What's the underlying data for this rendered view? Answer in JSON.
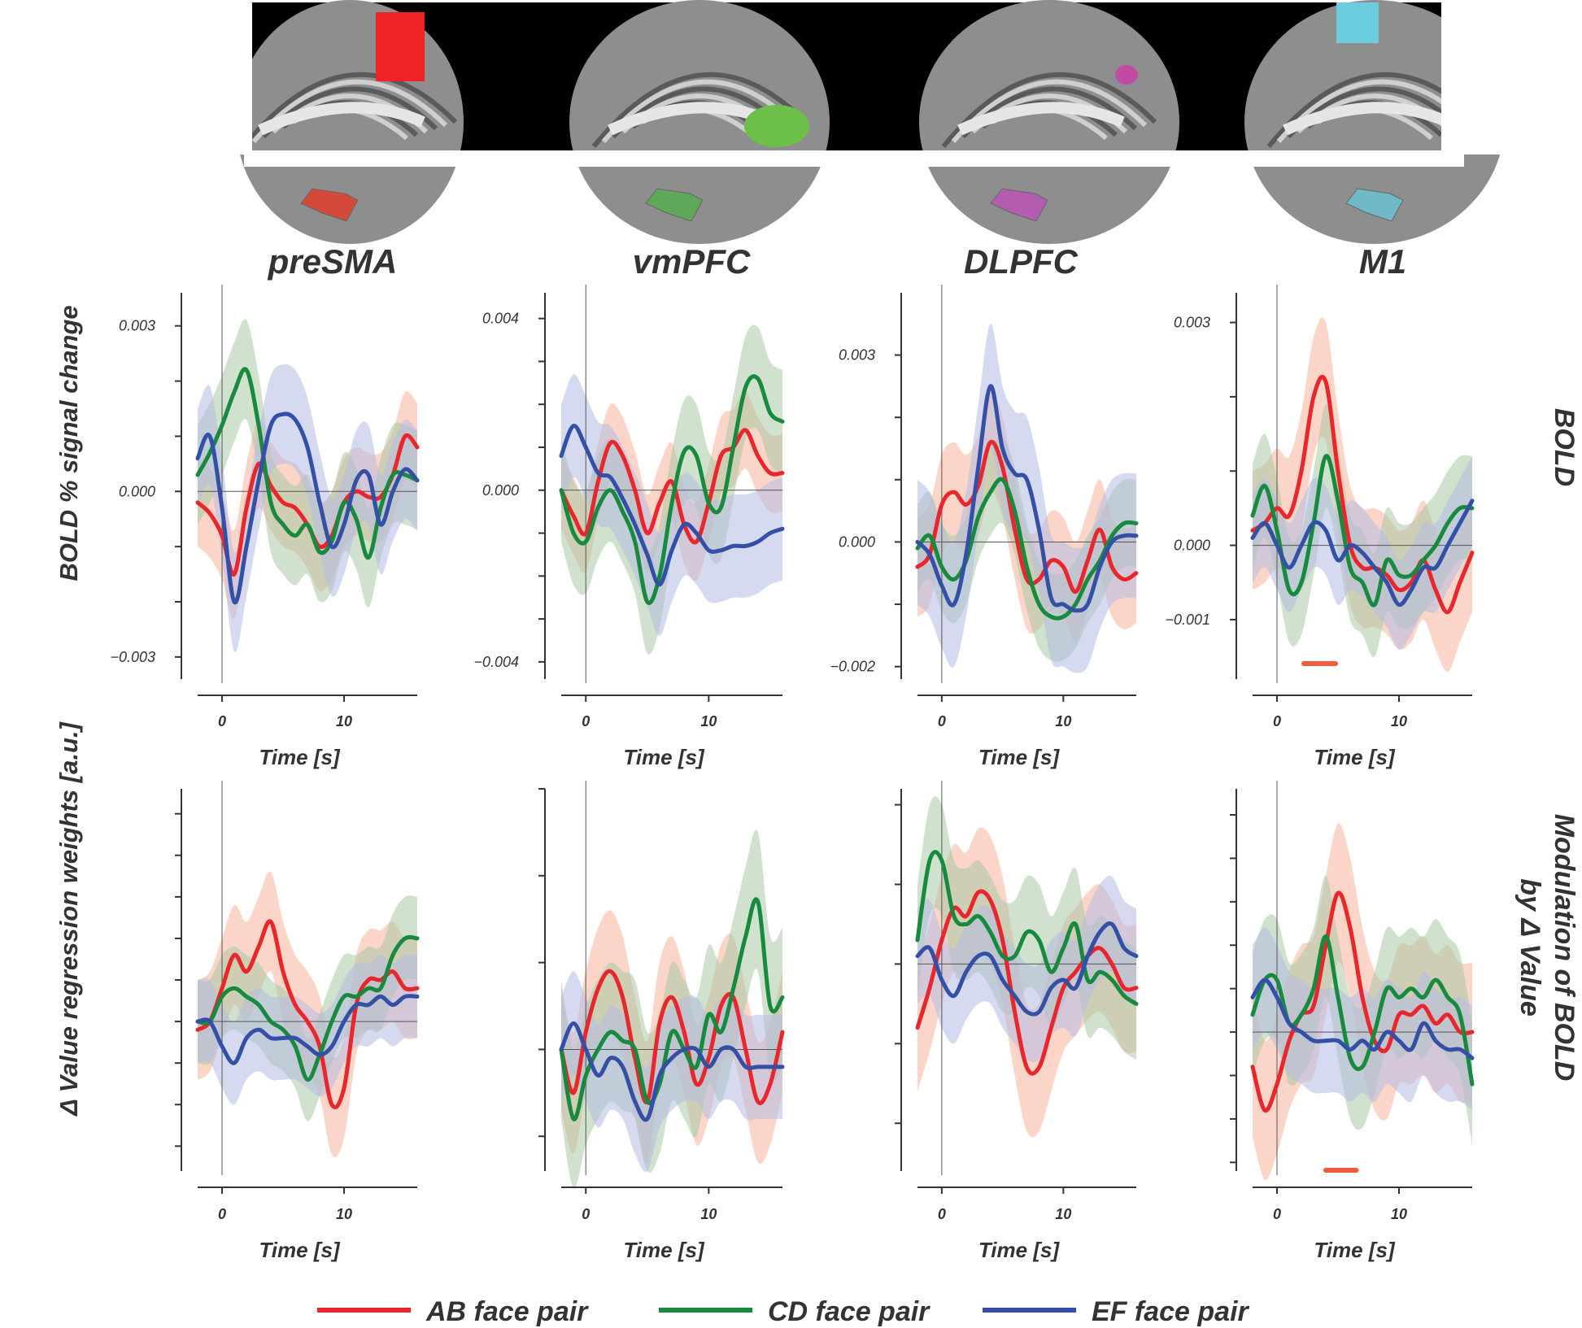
{
  "colors": {
    "AB": "#e8262b",
    "CD": "#178a3d",
    "EF": "#3350a6",
    "AB_band": "#f7b39b",
    "CD_band": "#a9c9a4",
    "EF_band": "#b5bce3",
    "roi_preSMA": "#ee2326",
    "roi_vmPFC": "#6cc04a",
    "roi_DLPFC": "#c04ba3",
    "roi_M1": "#6ccde0",
    "significance_bar": "#ee5a3a"
  },
  "labels": {
    "ylabel_row1": "BOLD % signal change",
    "ylabel_row2": "Δ Value regression weights [a.u.]",
    "row1_title": "BOLD",
    "row2_title_line1": "Modulation of BOLD",
    "row2_title_line2": "by Δ Value",
    "xlabel": "Time [s]"
  },
  "legend": [
    {
      "key": "AB",
      "label": "AB face pair"
    },
    {
      "key": "CD",
      "label": "CD face pair"
    },
    {
      "key": "EF",
      "label": "EF face pair"
    }
  ],
  "chart_data": [
    {
      "type": "line",
      "region": "preSMA",
      "row": "BOLD",
      "title": "preSMA",
      "xlabel": "Time [s]",
      "ylabel": "BOLD % signal change",
      "xlim": [
        -2,
        16
      ],
      "x_ticks": [
        0,
        10
      ],
      "ylim": [
        -0.0034,
        0.0036
      ],
      "y_ticks": [
        -0.003,
        -0.002,
        -0.001,
        0,
        0.001,
        0.002,
        0.003
      ],
      "y_tick_labels": [
        "−0.003",
        "",
        "",
        "0.000",
        "",
        "",
        "0.003"
      ],
      "x": [
        -2,
        -1,
        0,
        1,
        2,
        3,
        4,
        5,
        6,
        7,
        8,
        9,
        10,
        11,
        12,
        13,
        14,
        15,
        16
      ],
      "series": [
        {
          "name": "AB face pair",
          "values": [
            -0.0002,
            -0.0004,
            -0.0008,
            -0.0015,
            -0.0003,
            0.0005,
            0.0001,
            -0.0002,
            -0.0003,
            -0.0006,
            -0.001,
            -0.0008,
            -0.0002,
            0.0,
            -0.0001,
            -0.0001,
            0.0003,
            0.001,
            0.0008
          ],
          "band": 0.0008
        },
        {
          "name": "CD face pair",
          "values": [
            0.0003,
            0.0007,
            0.0012,
            0.0018,
            0.0022,
            0.0012,
            -0.0002,
            -0.0006,
            -0.0008,
            -0.0006,
            -0.0011,
            -0.0009,
            -0.0002,
            -0.0005,
            -0.0012,
            -0.0003,
            0.0003,
            0.0003,
            0.0002
          ],
          "band": 0.0009
        },
        {
          "name": "EF face pair",
          "values": [
            0.0006,
            0.001,
            -0.0003,
            -0.002,
            -0.001,
            0.0002,
            0.0012,
            0.0014,
            0.0013,
            0.0008,
            -0.0002,
            -0.001,
            -0.0006,
            0.0002,
            0.0003,
            -0.0006,
            0.0,
            0.0004,
            0.0002
          ],
          "band": 0.0009
        }
      ]
    },
    {
      "type": "line",
      "region": "vmPFC",
      "row": "BOLD",
      "title": "vmPFC",
      "xlabel": "Time [s]",
      "ylabel": "",
      "xlim": [
        -2,
        16
      ],
      "x_ticks": [
        0,
        10
      ],
      "ylim": [
        -0.0044,
        0.0046
      ],
      "y_ticks": [
        -0.004,
        -0.003,
        -0.002,
        -0.001,
        0,
        0.001,
        0.002,
        0.003,
        0.004
      ],
      "y_tick_labels": [
        "−0.004",
        "",
        "",
        "",
        "0.000",
        "",
        "",
        "",
        "0.004"
      ],
      "x": [
        -2,
        -1,
        0,
        1,
        2,
        3,
        4,
        5,
        6,
        7,
        8,
        9,
        10,
        11,
        12,
        13,
        14,
        15,
        16
      ],
      "series": [
        {
          "name": "AB face pair",
          "values": [
            0.0,
            -0.0006,
            -0.001,
            0.0002,
            0.0011,
            0.0008,
            0.0,
            -0.001,
            -0.0003,
            0.0002,
            -0.0008,
            -0.0012,
            -0.0003,
            0.0008,
            0.001,
            0.0014,
            0.0008,
            0.0004,
            0.0004
          ],
          "band": 0.0009
        },
        {
          "name": "CD face pair",
          "values": [
            0.0,
            -0.001,
            -0.0012,
            -0.0004,
            0.0,
            -0.0005,
            -0.0012,
            -0.0026,
            -0.002,
            -0.0003,
            0.0009,
            0.0008,
            -0.0003,
            -0.0004,
            0.001,
            0.0024,
            0.0026,
            0.0018,
            0.0016
          ],
          "band": 0.0012
        },
        {
          "name": "EF face pair",
          "values": [
            0.0008,
            0.0015,
            0.001,
            0.0004,
            0.0003,
            -0.0002,
            -0.0008,
            -0.0015,
            -0.0022,
            -0.0014,
            -0.0008,
            -0.001,
            -0.0014,
            -0.0014,
            -0.0013,
            -0.0013,
            -0.0012,
            -0.001,
            -0.0009
          ],
          "band": 0.0012
        }
      ]
    },
    {
      "type": "line",
      "region": "DLPFC",
      "row": "BOLD",
      "title": "DLPFC",
      "xlabel": "Time [s]",
      "ylabel": "",
      "xlim": [
        -2,
        16
      ],
      "x_ticks": [
        0,
        10
      ],
      "ylim": [
        -0.0022,
        0.004
      ],
      "y_ticks": [
        -0.002,
        -0.001,
        0,
        0.001,
        0.002,
        0.003
      ],
      "y_tick_labels": [
        "−0.002",
        "",
        "0.000",
        "",
        "",
        "0.003"
      ],
      "x": [
        -2,
        -1,
        0,
        1,
        2,
        3,
        4,
        5,
        6,
        7,
        8,
        9,
        10,
        11,
        12,
        13,
        14,
        15,
        16
      ],
      "series": [
        {
          "name": "AB face pair",
          "values": [
            -0.0004,
            -0.0002,
            0.0006,
            0.0008,
            0.0006,
            0.0009,
            0.0016,
            0.0012,
            0.0002,
            -0.0006,
            -0.0006,
            -0.0003,
            -0.0004,
            -0.0008,
            -0.0003,
            0.0002,
            -0.0004,
            -0.0006,
            -0.0005
          ],
          "band": 0.0008
        },
        {
          "name": "CD face pair",
          "values": [
            -0.0001,
            0.0001,
            -0.0004,
            -0.0006,
            -0.0003,
            0.0004,
            0.0008,
            0.001,
            0.0005,
            -0.0004,
            -0.001,
            -0.0012,
            -0.0012,
            -0.001,
            -0.0006,
            -0.0003,
            0.0001,
            0.0003,
            0.0003
          ],
          "band": 0.0007
        },
        {
          "name": "EF face pair",
          "values": [
            0.0,
            -0.0002,
            -0.0007,
            -0.001,
            -0.0002,
            0.0012,
            0.0025,
            0.0015,
            0.0011,
            0.001,
            0.0002,
            -0.0009,
            -0.001,
            -0.0011,
            -0.001,
            -0.0004,
            0.0,
            0.0001,
            0.0001
          ],
          "band": 0.001
        }
      ]
    },
    {
      "type": "line",
      "region": "M1",
      "row": "BOLD",
      "title": "M1",
      "xlabel": "Time [s]",
      "ylabel": "",
      "xlim": [
        -2,
        16
      ],
      "x_ticks": [
        0,
        10
      ],
      "ylim": [
        -0.0018,
        0.0034
      ],
      "y_ticks": [
        -0.001,
        0,
        0.001,
        0.002,
        0.003
      ],
      "y_tick_labels": [
        "−0.001",
        "0.000",
        "",
        "",
        "0.003"
      ],
      "significance": [
        2.2,
        4.8
      ],
      "x": [
        -2,
        -1,
        0,
        1,
        2,
        3,
        4,
        5,
        6,
        7,
        8,
        9,
        10,
        11,
        12,
        13,
        14,
        15,
        16
      ],
      "series": [
        {
          "name": "AB face pair",
          "values": [
            0.0002,
            0.0003,
            0.0005,
            0.0004,
            0.001,
            0.002,
            0.0022,
            0.001,
            0.0,
            -0.0003,
            -0.0003,
            -0.0004,
            -0.0006,
            -0.0005,
            -0.0002,
            -0.0006,
            -0.0009,
            -0.0005,
            -0.0001
          ],
          "band": 0.0008
        },
        {
          "name": "CD face pair",
          "values": [
            0.0004,
            0.0008,
            0.0002,
            -0.0006,
            -0.0005,
            0.0003,
            0.0012,
            0.0006,
            -0.0003,
            -0.0005,
            -0.0008,
            -0.0002,
            -0.0004,
            -0.0004,
            -0.0002,
            0.0,
            0.0003,
            0.0005,
            0.0005
          ],
          "band": 0.0007
        },
        {
          "name": "EF face pair",
          "values": [
            0.0001,
            0.0003,
            0.0,
            -0.0003,
            0.0,
            0.0003,
            0.0002,
            -0.0002,
            0.0,
            -0.0001,
            -0.0003,
            -0.0005,
            -0.0008,
            -0.0006,
            -0.0003,
            -0.0003,
            0.0,
            0.0003,
            0.0006
          ],
          "band": 0.0006
        }
      ]
    },
    {
      "type": "line",
      "region": "preSMA",
      "row": "Modulation of BOLD by Δ Value",
      "xlabel": "Time [s]",
      "ylabel": "Δ Value regression weights [a.u.]",
      "xlim": [
        -2,
        16
      ],
      "x_ticks": [
        0,
        10
      ],
      "ylim": [
        -1.8,
        2.8
      ],
      "y_ticks": [
        -1.5,
        -1.0,
        -0.5,
        0,
        0.5,
        1.0,
        1.5,
        2.0,
        2.5
      ],
      "y_tick_labels": [
        "",
        "",
        "",
        "",
        "",
        "",
        "",
        "",
        ""
      ],
      "x": [
        -2,
        -1,
        0,
        1,
        2,
        3,
        4,
        5,
        6,
        7,
        8,
        9,
        10,
        11,
        12,
        13,
        14,
        15,
        16
      ],
      "series": [
        {
          "name": "AB face pair",
          "values": [
            -0.1,
            0.0,
            0.4,
            0.8,
            0.6,
            0.9,
            1.2,
            0.6,
            0.2,
            0.0,
            -0.3,
            -1.0,
            -0.8,
            0.2,
            0.5,
            0.5,
            0.6,
            0.4,
            0.4
          ],
          "band": 0.6
        },
        {
          "name": "CD face pair",
          "values": [
            0.0,
            0.0,
            0.3,
            0.4,
            0.3,
            0.2,
            0.0,
            -0.1,
            -0.3,
            -0.7,
            -0.4,
            0.0,
            0.3,
            0.3,
            0.4,
            0.4,
            0.8,
            1.0,
            1.0
          ],
          "band": 0.5
        },
        {
          "name": "EF face pair",
          "values": [
            0.0,
            0.0,
            -0.3,
            -0.5,
            -0.2,
            -0.1,
            -0.2,
            -0.2,
            -0.2,
            -0.3,
            -0.4,
            -0.3,
            0.0,
            0.2,
            0.2,
            0.3,
            0.2,
            0.3,
            0.3
          ],
          "band": 0.5
        }
      ]
    },
    {
      "type": "line",
      "region": "vmPFC",
      "row": "Modulation of BOLD by Δ Value",
      "xlabel": "Time [s]",
      "ylabel": "",
      "xlim": [
        -2,
        16
      ],
      "x_ticks": [
        0,
        10
      ],
      "ylim": [
        -1.4,
        3.0
      ],
      "y_ticks": [
        -1,
        0,
        1,
        2,
        3
      ],
      "y_tick_labels": [
        "",
        "",
        "",
        "",
        ""
      ],
      "x": [
        -2,
        -1,
        0,
        1,
        2,
        3,
        4,
        5,
        6,
        7,
        8,
        9,
        10,
        11,
        12,
        13,
        14,
        15,
        16
      ],
      "series": [
        {
          "name": "AB face pair",
          "values": [
            0.0,
            -0.5,
            0.2,
            0.7,
            0.9,
            0.6,
            -0.1,
            -0.6,
            0.3,
            0.6,
            0.2,
            -0.4,
            -0.1,
            0.5,
            0.6,
            0.0,
            -0.6,
            -0.4,
            0.2
          ],
          "band": 0.7
        },
        {
          "name": "CD face pair",
          "values": [
            0.0,
            -0.8,
            -0.3,
            0.0,
            0.2,
            0.1,
            0.0,
            -0.6,
            -0.4,
            0.2,
            0.0,
            -0.2,
            0.4,
            0.2,
            0.7,
            1.3,
            1.7,
            0.5,
            0.6
          ],
          "band": 0.8
        },
        {
          "name": "EF face pair",
          "values": [
            0.0,
            0.3,
            0.0,
            -0.3,
            -0.1,
            -0.2,
            -0.6,
            -0.8,
            -0.3,
            -0.1,
            0.0,
            0.0,
            -0.2,
            0.0,
            0.0,
            -0.2,
            -0.2,
            -0.2,
            -0.2
          ],
          "band": 0.6
        }
      ]
    },
    {
      "type": "line",
      "region": "DLPFC",
      "row": "Modulation of BOLD by Δ Value",
      "xlabel": "Time [s]",
      "ylabel": "",
      "xlim": [
        -2,
        16
      ],
      "x_ticks": [
        0,
        10
      ],
      "ylim": [
        -2.6,
        2.2
      ],
      "y_ticks": [
        -2,
        -1,
        0,
        1,
        2
      ],
      "y_tick_labels": [
        "",
        "",
        "",
        "",
        ""
      ],
      "x": [
        -2,
        -1,
        0,
        1,
        2,
        3,
        4,
        5,
        6,
        7,
        8,
        9,
        10,
        11,
        12,
        13,
        14,
        15,
        16
      ],
      "series": [
        {
          "name": "AB face pair",
          "values": [
            -0.8,
            -0.3,
            0.3,
            0.7,
            0.6,
            0.9,
            0.8,
            0.3,
            -0.6,
            -1.3,
            -1.3,
            -0.8,
            -0.3,
            -0.1,
            0.1,
            0.2,
            0.0,
            -0.3,
            -0.3
          ],
          "band": 0.8
        },
        {
          "name": "CD face pair",
          "values": [
            0.3,
            1.3,
            1.3,
            0.6,
            0.5,
            0.6,
            0.4,
            0.1,
            0.1,
            0.4,
            0.3,
            -0.1,
            0.2,
            0.5,
            -0.2,
            -0.1,
            -0.2,
            -0.4,
            -0.5
          ],
          "band": 0.7
        },
        {
          "name": "EF face pair",
          "values": [
            0.1,
            0.2,
            -0.2,
            -0.4,
            -0.1,
            0.1,
            0.1,
            -0.2,
            -0.4,
            -0.6,
            -0.6,
            -0.3,
            -0.2,
            -0.3,
            0.1,
            0.4,
            0.5,
            0.2,
            0.1
          ],
          "band": 0.6
        }
      ]
    },
    {
      "type": "line",
      "region": "M1",
      "row": "Modulation of BOLD by Δ Value",
      "xlabel": "Time [s]",
      "ylabel": "",
      "xlim": [
        -2,
        16
      ],
      "x_ticks": [
        0,
        10
      ],
      "ylim": [
        -1.6,
        2.8
      ],
      "y_ticks": [
        -1.5,
        -1.0,
        -0.5,
        0,
        0.5,
        1.0,
        1.5,
        2.0,
        2.5
      ],
      "y_tick_labels": [
        "",
        "",
        "",
        "",
        "",
        "",
        "",
        "",
        ""
      ],
      "significance": [
        4,
        6.5
      ],
      "x": [
        -2,
        -1,
        0,
        1,
        2,
        3,
        4,
        5,
        6,
        7,
        8,
        9,
        10,
        11,
        12,
        13,
        14,
        15,
        16
      ],
      "series": [
        {
          "name": "AB face pair",
          "values": [
            -0.4,
            -0.9,
            -0.6,
            -0.1,
            0.2,
            0.3,
            1.0,
            1.6,
            1.2,
            0.4,
            -0.1,
            -0.2,
            0.2,
            0.2,
            0.3,
            0.1,
            0.2,
            0.0,
            0.0
          ],
          "band": 0.8
        },
        {
          "name": "CD face pair",
          "values": [
            0.2,
            0.6,
            0.6,
            0.1,
            0.2,
            0.5,
            1.1,
            0.4,
            -0.3,
            -0.4,
            0.0,
            0.5,
            0.4,
            0.5,
            0.4,
            0.6,
            0.4,
            0.2,
            -0.6
          ],
          "band": 0.7
        },
        {
          "name": "EF face pair",
          "values": [
            0.4,
            0.6,
            0.4,
            0.1,
            0.0,
            -0.1,
            -0.1,
            -0.1,
            -0.2,
            -0.1,
            -0.2,
            0.0,
            -0.1,
            -0.2,
            0.1,
            -0.1,
            -0.2,
            -0.2,
            -0.3
          ],
          "band": 0.6
        }
      ]
    }
  ]
}
